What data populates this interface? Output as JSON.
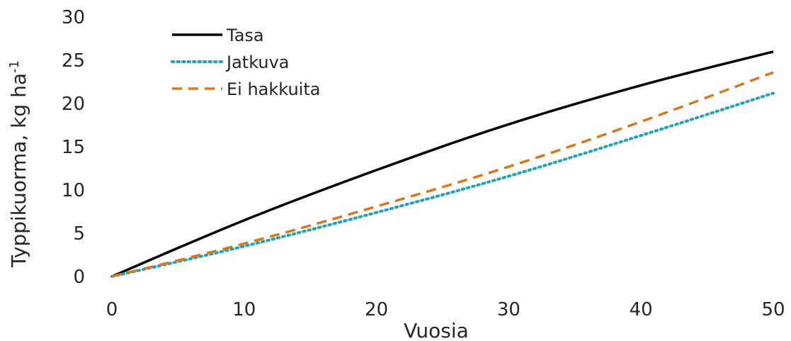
{
  "chart_data": {
    "type": "line",
    "x": [
      0,
      10,
      20,
      30,
      40,
      50
    ],
    "xlabel": "Vuosia",
    "ylabel": "Typpikuorma, kg ha",
    "ylabel_superscript": "-1",
    "xlim": [
      0,
      50
    ],
    "ylim": [
      0,
      30
    ],
    "xticks": [
      "0",
      "10",
      "20",
      "30",
      "40",
      "50"
    ],
    "yticks": [
      "0",
      "5",
      "10",
      "15",
      "20",
      "25",
      "30"
    ],
    "grid": false,
    "legend": "top-left",
    "series": [
      {
        "name": "Tasa",
        "values": [
          0,
          6.5,
          12.3,
          17.6,
          22.1,
          26.0
        ],
        "color": "#000000",
        "style": "solid"
      },
      {
        "name": "Jatkuva",
        "values": [
          0,
          3.5,
          7.4,
          11.6,
          16.3,
          21.2
        ],
        "color": "#1fa3b8",
        "style": "dotted"
      },
      {
        "name": "Ei hakkuita",
        "values": [
          0,
          3.8,
          8.1,
          12.7,
          17.9,
          23.6
        ],
        "color": "#d9781a",
        "style": "dashed"
      }
    ]
  }
}
